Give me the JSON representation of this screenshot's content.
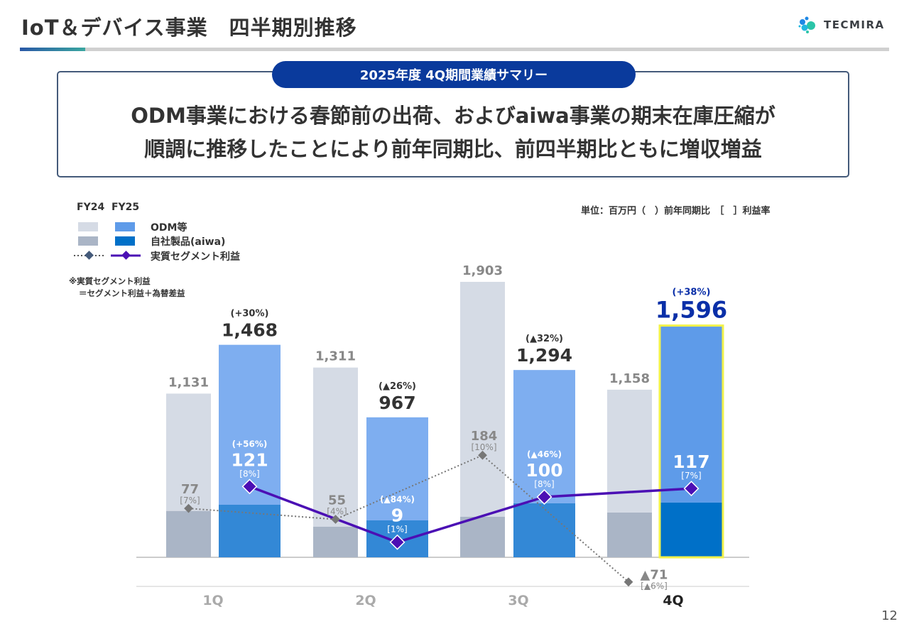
{
  "header": {
    "title": "IoT＆デバイス事業　四半期別推移",
    "logo_text": "TECMIRA"
  },
  "summary": {
    "pill": "2025年度 4Q期間業績サマリー",
    "line1": "ODM事業における春節前の出荷、およびaiwa事業の期末在庫圧縮が",
    "line2": "順調に推移したことにより前年同期比、前四半期比ともに増収増益"
  },
  "legend": {
    "fy24": "FY24",
    "fy25": "FY25",
    "odm": "ODM等",
    "aiwa": "自社製品(aiwa)",
    "profit": "実質セグメント利益",
    "note1": "※実質セグメント利益",
    "note2": "＝セグメント利益＋為替差益"
  },
  "unit_note": "単位：百万円（　）前年同期比　［　］利益率",
  "page_number": "12",
  "colors": {
    "fy24_odm": "#d5dbe5",
    "fy24_aiwa": "#aab5c6",
    "fy25_odm": "#7eaef0",
    "fy25_aiwa": "#3388d6",
    "fy25_q4_odm": "#5e9be9",
    "fy25_q4_aiwa": "#0070c8",
    "profit_fy25": "#4b0fb4",
    "profit_fy24": "#777777",
    "highlight": "#f2f24a"
  },
  "chart_data": {
    "type": "bar",
    "categories": [
      "1Q",
      "2Q",
      "3Q",
      "4Q"
    ],
    "revenue": {
      "FY24": {
        "total": [
          1131,
          1311,
          1903,
          1158
        ],
        "total_labels": [
          "1,131",
          "1,311",
          "1,903",
          "1,158"
        ],
        "aiwa_est": [
          320,
          211,
          280,
          309
        ]
      },
      "FY25": {
        "total": [
          1468,
          967,
          1294,
          1596
        ],
        "total_labels": [
          "1,468",
          "967",
          "1,294",
          "1,596"
        ],
        "yoy": [
          "(+30%)",
          "(▲26%)",
          "(▲32%)",
          "(+38%)"
        ],
        "aiwa_est": [
          363,
          255,
          373,
          378
        ]
      }
    },
    "profit": {
      "FY24": {
        "values": [
          77,
          55,
          184,
          -71
        ],
        "labels": [
          "77",
          "55",
          "184",
          "▲71"
        ],
        "margin": [
          "[7%]",
          "[4%]",
          "[10%]",
          "[▲6%]"
        ]
      },
      "FY25": {
        "values": [
          121,
          9,
          100,
          117
        ],
        "labels": [
          "121",
          "9",
          "100",
          "117"
        ],
        "margin": [
          "[8%]",
          "[1%]",
          "[8%]",
          "[7%]"
        ],
        "yoy": [
          "(+56%)",
          "(▲84%)",
          "(▲46%)",
          ""
        ]
      }
    }
  }
}
